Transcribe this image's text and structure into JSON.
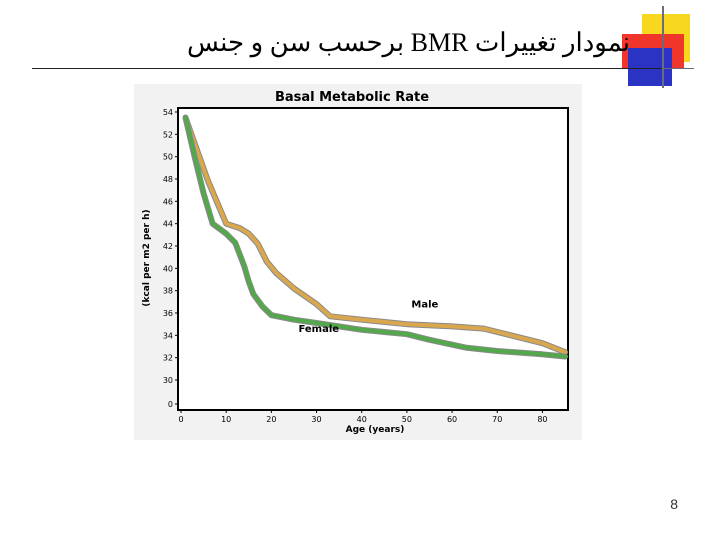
{
  "slide": {
    "title": "نمودار تغییرات BMR برحسب سن و جنس",
    "page_number": "8"
  },
  "colors": {
    "male": "#d9a84e",
    "male_edge": "#8a8a8a",
    "female": "#52a84a",
    "female_edge": "#8a8a8a",
    "plot_bg": "#ffffff",
    "frame_bg": "#f2f2f2",
    "axis": "#000000"
  },
  "chart_data": {
    "type": "line",
    "title": "Basal Metabolic Rate",
    "xlabel": "Age (years)",
    "ylabel": "(kcal per m2 per h)",
    "xlim": [
      0,
      85
    ],
    "ylim": [
      30,
      54
    ],
    "x_ticks": [
      0,
      10,
      20,
      30,
      40,
      50,
      60,
      70,
      80
    ],
    "x_tick_labels": [
      "0",
      "10",
      "20",
      "30",
      "40",
      "50",
      "60",
      "70",
      "80"
    ],
    "y_ticks": [
      54,
      52,
      50,
      48,
      46,
      44,
      42,
      40,
      38,
      36,
      34,
      32,
      30
    ],
    "y_tick_labels": [
      "54",
      "52",
      "50",
      "48",
      "46",
      "44",
      "42",
      "40",
      "38",
      "36",
      "34",
      "32",
      "30"
    ],
    "y_axis_break_label": "0",
    "grid": false,
    "series": [
      {
        "name": "Male",
        "x": [
          1,
          3,
          6,
          10,
          13,
          15,
          17,
          19,
          21,
          25,
          30,
          33,
          40,
          50,
          60,
          67,
          73,
          80,
          85
        ],
        "y": [
          53.5,
          51.2,
          47.8,
          44.0,
          43.6,
          43.1,
          42.2,
          40.6,
          39.6,
          38.2,
          36.8,
          35.7,
          35.4,
          35.0,
          34.8,
          34.6,
          34.0,
          33.3,
          32.5
        ]
      },
      {
        "name": "Female",
        "x": [
          1,
          3,
          5,
          7,
          10,
          12,
          14,
          15,
          16,
          18,
          20,
          25,
          30,
          40,
          50,
          55,
          63,
          70,
          80,
          85
        ],
        "y": [
          53.5,
          50.0,
          46.7,
          44.0,
          43.1,
          42.3,
          40.2,
          38.8,
          37.7,
          36.6,
          35.8,
          35.4,
          35.1,
          34.5,
          34.1,
          33.6,
          32.9,
          32.6,
          32.3,
          32.1
        ]
      }
    ],
    "annotations": [
      {
        "text": "Male",
        "x": 51,
        "y": 36.5,
        "series": "Male"
      },
      {
        "text": "Female",
        "x": 26,
        "y": 34.3,
        "series": "Female"
      }
    ]
  }
}
